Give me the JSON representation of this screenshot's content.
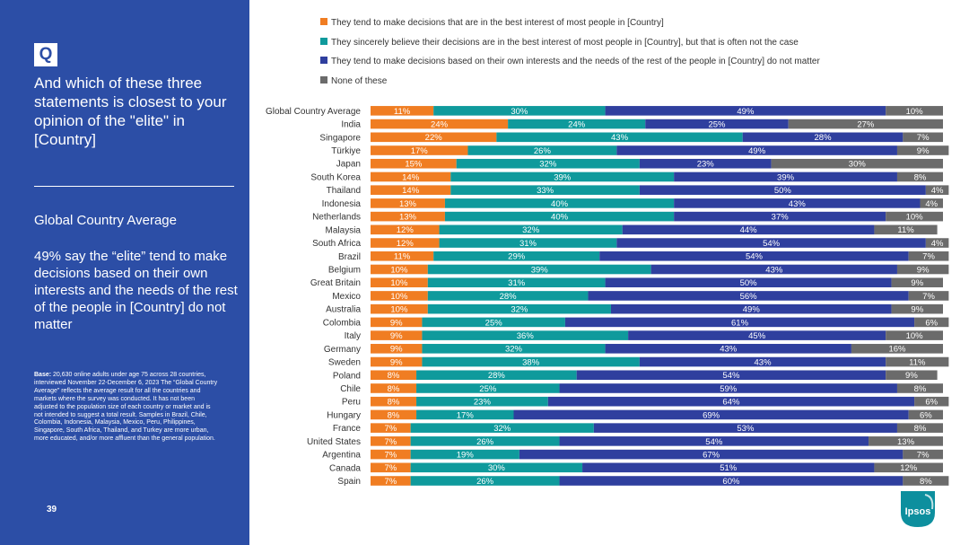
{
  "left_panel": {
    "badge": "Q",
    "question": "And which of these three statements is closest to your opinion of the \"elite\" in [Country]",
    "summary_heading": "Global Country Average",
    "summary_text": "49% say the “elite” tend to make decisions based on their own interests and the needs of the rest of the people in [Country] do not matter",
    "base_label": "Base:",
    "base_note": " 20,630 online adults  under age 75 across 28 countries, interviewed November 22-December 6, 2023 The “Global Country Average” reflects the average result for all the countries and markets where the survey was conducted. It has not been adjusted to the population size of each country or market and is not intended to suggest a total result. Samples in Brazil, Chile, Colombia, Indonesia, Malaysia, Mexico, Peru, Philippines, Singapore, South Africa, Thailand, and Turkey are more urban, more educated, and/or more affluent than the general population.",
    "page_number": "39"
  },
  "logo": {
    "text": "Ipsos",
    "color": "#0d8f9e"
  },
  "colors": {
    "panel": "#2c4ea6",
    "series": [
      "#f07d22",
      "#0f9a9c",
      "#2f3f9e",
      "#6b6b6b"
    ]
  },
  "chart_data": {
    "type": "bar",
    "orientation": "horizontal",
    "stacked": true,
    "unit": "%",
    "xlim": [
      0,
      100
    ],
    "grid": false,
    "legend_position": "top",
    "categories": [
      "Global Country Average",
      "India",
      "Singapore",
      "Türkiye",
      "Japan",
      "South Korea",
      "Thailand",
      "Indonesia",
      "Netherlands",
      "Malaysia",
      "South Africa",
      "Brazil",
      "Belgium",
      "Great Britain",
      "Mexico",
      "Australia",
      "Colombia",
      "Italy",
      "Germany",
      "Sweden",
      "Poland",
      "Chile",
      "Peru",
      "Hungary",
      "France",
      "United States",
      "Argentina",
      "Canada",
      "Spain"
    ],
    "series": [
      {
        "name": "They tend to make decisions that are in the best interest of most people in [Country]",
        "values": [
          11,
          24,
          22,
          17,
          15,
          14,
          14,
          13,
          13,
          12,
          12,
          11,
          10,
          10,
          10,
          10,
          9,
          9,
          9,
          9,
          8,
          8,
          8,
          8,
          7,
          7,
          7,
          7,
          7
        ]
      },
      {
        "name": "They sincerely believe their decisions are in the best interest of most people in [Country], but that is often not the case",
        "values": [
          30,
          24,
          43,
          26,
          32,
          39,
          33,
          40,
          40,
          32,
          31,
          29,
          39,
          31,
          28,
          32,
          25,
          36,
          32,
          38,
          28,
          25,
          23,
          17,
          32,
          26,
          19,
          30,
          26
        ]
      },
      {
        "name": "They tend to make decisions based on their own interests and the needs of the rest of the people in [Country] do not matter",
        "values": [
          49,
          25,
          28,
          49,
          23,
          39,
          50,
          43,
          37,
          44,
          54,
          54,
          43,
          50,
          56,
          49,
          61,
          45,
          43,
          43,
          54,
          59,
          64,
          69,
          53,
          54,
          67,
          51,
          60
        ]
      },
      {
        "name": "None of these",
        "values": [
          10,
          27,
          7,
          9,
          30,
          8,
          4,
          4,
          10,
          11,
          4,
          7,
          9,
          9,
          7,
          9,
          6,
          10,
          16,
          11,
          9,
          8,
          6,
          6,
          8,
          13,
          7,
          12,
          8
        ]
      }
    ]
  }
}
